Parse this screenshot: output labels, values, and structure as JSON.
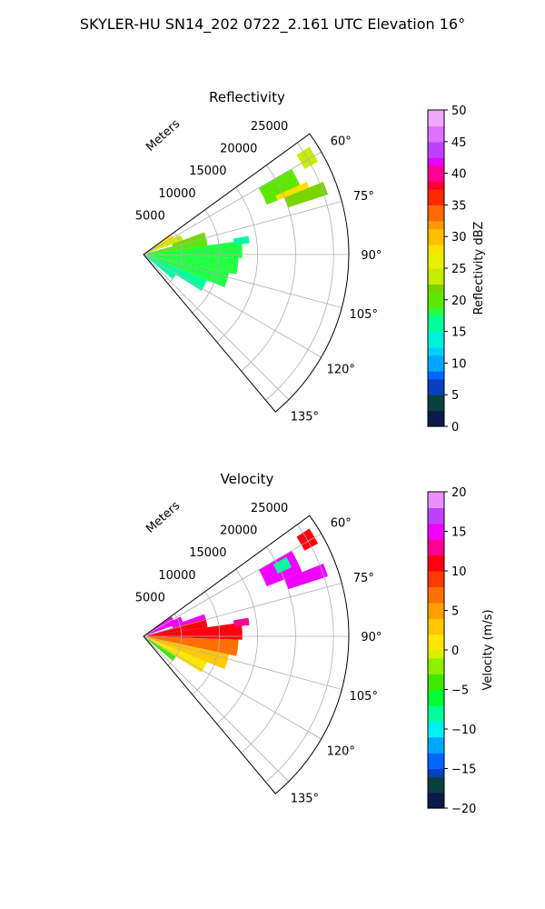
{
  "figure": {
    "title": "SKYLER-HU  SN14_202  0722_2.161 UTC Elevation 16°"
  },
  "chart_data": [
    {
      "type": "heatmap",
      "projection": "polar-sector",
      "title": "Reflectivity",
      "radial_axis_label": "Meters",
      "radial_ticks": [
        5000,
        10000,
        15000,
        20000,
        25000
      ],
      "radial_tick_labels": [
        "5000",
        "10000",
        "15000",
        "20000",
        "25000"
      ],
      "rlim": [
        0,
        27000
      ],
      "angle_range_deg": [
        54,
        140
      ],
      "angle_ticks_deg": [
        60,
        75,
        90,
        105,
        120,
        135
      ],
      "angle_tick_labels": [
        "60°",
        "75°",
        "90°",
        "105°",
        "120°",
        "135°"
      ],
      "grid": true,
      "colorbar": {
        "label": "Reflectivity dBZ",
        "range": [
          0,
          50
        ],
        "ticks": [
          0,
          5,
          10,
          15,
          20,
          25,
          30,
          35,
          40,
          45,
          50
        ],
        "tick_labels": [
          "0",
          "5",
          "10",
          "15",
          "20",
          "25",
          "30",
          "35",
          "40",
          "45",
          "50"
        ]
      },
      "cells": [
        {
          "a0": 60,
          "a1": 68,
          "r0": 17500,
          "r1": 22500,
          "v": 20
        },
        {
          "a0": 68,
          "a1": 72,
          "r0": 20000,
          "r1": 25500,
          "v": 22
        },
        {
          "a0": 66,
          "a1": 68,
          "r0": 19000,
          "r1": 23500,
          "v": 28
        },
        {
          "a0": 57,
          "a1": 62,
          "r0": 24000,
          "r1": 26000,
          "v": 24
        },
        {
          "a0": 55,
          "a1": 62,
          "r0": 500,
          "r1": 4500,
          "v": 28
        },
        {
          "a0": 62,
          "a1": 70,
          "r0": 500,
          "r1": 5500,
          "v": 24
        },
        {
          "a0": 70,
          "a1": 78,
          "r0": 4000,
          "r1": 8500,
          "v": 22
        },
        {
          "a0": 74,
          "a1": 82,
          "r0": 500,
          "r1": 8500,
          "v": 20
        },
        {
          "a0": 82,
          "a1": 92,
          "r0": 500,
          "r1": 13000,
          "v": 18
        },
        {
          "a0": 92,
          "a1": 102,
          "r0": 500,
          "r1": 12500,
          "v": 17
        },
        {
          "a0": 102,
          "a1": 112,
          "r0": 500,
          "r1": 11500,
          "v": 17
        },
        {
          "a0": 112,
          "a1": 122,
          "r0": 500,
          "r1": 9000,
          "v": 16
        },
        {
          "a0": 122,
          "a1": 130,
          "r0": 500,
          "r1": 5000,
          "v": 16
        },
        {
          "a0": 80,
          "a1": 84,
          "r0": 12000,
          "r1": 14000,
          "v": 15
        }
      ]
    },
    {
      "type": "heatmap",
      "projection": "polar-sector",
      "title": "Velocity",
      "radial_axis_label": "Meters",
      "radial_ticks": [
        5000,
        10000,
        15000,
        20000,
        25000
      ],
      "radial_tick_labels": [
        "5000",
        "10000",
        "15000",
        "20000",
        "25000"
      ],
      "rlim": [
        0,
        27000
      ],
      "angle_range_deg": [
        54,
        140
      ],
      "angle_ticks_deg": [
        60,
        75,
        90,
        105,
        120,
        135
      ],
      "angle_tick_labels": [
        "60°",
        "75°",
        "90°",
        "105°",
        "120°",
        "135°"
      ],
      "grid": true,
      "colorbar": {
        "label": "Velocity (m/s)",
        "range": [
          -20,
          20
        ],
        "ticks": [
          -20,
          -15,
          -10,
          -5,
          0,
          5,
          10,
          15,
          20
        ],
        "tick_labels": [
          "−20",
          "−15",
          "−10",
          "−5",
          "0",
          "5",
          "10",
          "15",
          "20"
        ]
      },
      "cells": [
        {
          "a0": 60,
          "a1": 68,
          "r0": 17500,
          "r1": 22500,
          "v": 14
        },
        {
          "a0": 68,
          "a1": 72,
          "r0": 20000,
          "r1": 25500,
          "v": 15
        },
        {
          "a0": 61,
          "a1": 65,
          "r0": 19500,
          "r1": 21500,
          "v": -8
        },
        {
          "a0": 57,
          "a1": 62,
          "r0": 24000,
          "r1": 26000,
          "v": 10
        },
        {
          "a0": 55,
          "a1": 62,
          "r0": 500,
          "r1": 4500,
          "v": 14
        },
        {
          "a0": 62,
          "a1": 70,
          "r0": 500,
          "r1": 5500,
          "v": 15
        },
        {
          "a0": 70,
          "a1": 78,
          "r0": 4000,
          "r1": 8500,
          "v": 14
        },
        {
          "a0": 74,
          "a1": 82,
          "r0": 500,
          "r1": 8500,
          "v": 11
        },
        {
          "a0": 82,
          "a1": 92,
          "r0": 500,
          "r1": 13000,
          "v": 10
        },
        {
          "a0": 92,
          "a1": 102,
          "r0": 500,
          "r1": 12500,
          "v": 6
        },
        {
          "a0": 102,
          "a1": 112,
          "r0": 500,
          "r1": 11500,
          "v": 2
        },
        {
          "a0": 112,
          "a1": 122,
          "r0": 500,
          "r1": 9000,
          "v": 0
        },
        {
          "a0": 122,
          "a1": 130,
          "r0": 500,
          "r1": 5000,
          "v": -4
        },
        {
          "a0": 80,
          "a1": 84,
          "r0": 12000,
          "r1": 14000,
          "v": 12
        }
      ]
    }
  ]
}
